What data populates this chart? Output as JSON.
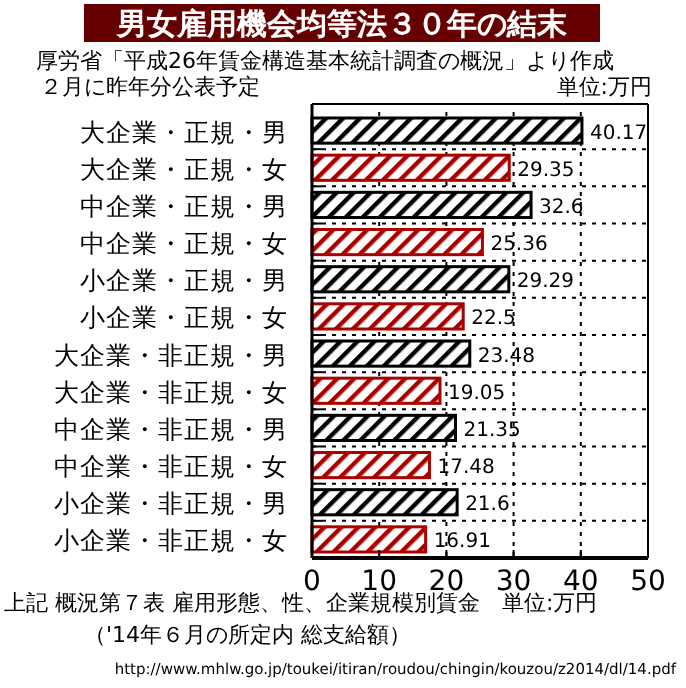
{
  "chart_data": {
    "type": "bar",
    "orientation": "horizontal",
    "title": "男女雇用機会均等法３０年の結末",
    "subtitle": "厚労省「平成26年賃金構造基本統計調査の概況」より作成",
    "annotations": [
      "２月に昨年分公表予定",
      "単位:万円",
      "上記 概況第７表 雇用形態、性、企業規模別賃金　単位:万円",
      "（'14年６月の所定内 総支給額）",
      "http://www.mhlw.go.jp/toukei/itiran/roudou/chingin/kouzou/z2014/dl/14.pdf"
    ],
    "categories": [
      "大企業・正規・男",
      "大企業・正規・女",
      "中企業・正規・男",
      "中企業・正規・女",
      "小企業・正規・男",
      "小企業・正規・女",
      "大企業・非正規・男",
      "大企業・非正規・女",
      "中企業・非正規・男",
      "中企業・非正規・女",
      "小企業・非正規・男",
      "小企業・非正規・女"
    ],
    "values": [
      40.17,
      29.35,
      32.6,
      25.36,
      29.29,
      22.5,
      23.48,
      19.05,
      21.35,
      17.48,
      21.6,
      16.91
    ],
    "colors": [
      "#000000",
      "#aa0000",
      "#000000",
      "#aa0000",
      "#000000",
      "#aa0000",
      "#000000",
      "#aa0000",
      "#000000",
      "#aa0000",
      "#000000",
      "#aa0000"
    ],
    "xlim": [
      0,
      50
    ],
    "xticks": [
      0,
      10,
      20,
      30,
      40,
      50
    ],
    "grid": true,
    "data_labels": true
  }
}
